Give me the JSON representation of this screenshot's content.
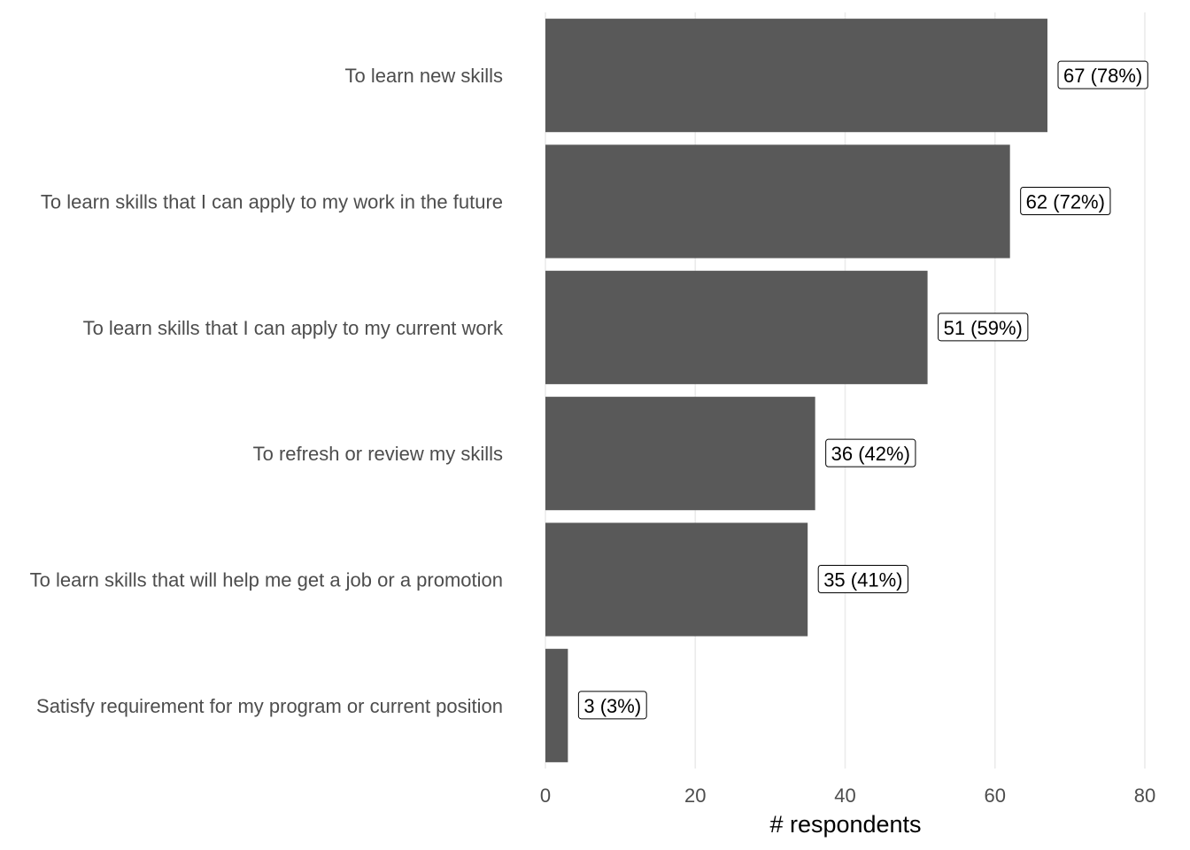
{
  "chart_data": {
    "type": "bar",
    "orientation": "horizontal",
    "categories": [
      "To learn new skills",
      "To learn skills that I can apply to my work in the future",
      "To learn skills that I can apply to my current work",
      "To refresh or review my skills",
      "To learn skills that will help me get a job or a promotion",
      "Satisfy requirement for my program or current position"
    ],
    "values": [
      67,
      62,
      51,
      36,
      35,
      3
    ],
    "data_labels": [
      "67 (78%)",
      "62 (72%)",
      "51 (59%)",
      "36 (42%)",
      "35 (41%)",
      "3 (3%)"
    ],
    "xlabel": "# respondents",
    "ylabel": "",
    "xlim": [
      0,
      80
    ],
    "xticks": [
      0,
      20,
      40,
      60,
      80
    ],
    "xtick_labels": [
      "0",
      "20",
      "40",
      "60",
      "80"
    ],
    "grid": "vertical major",
    "bar_color": "#595959",
    "legend": "none"
  }
}
